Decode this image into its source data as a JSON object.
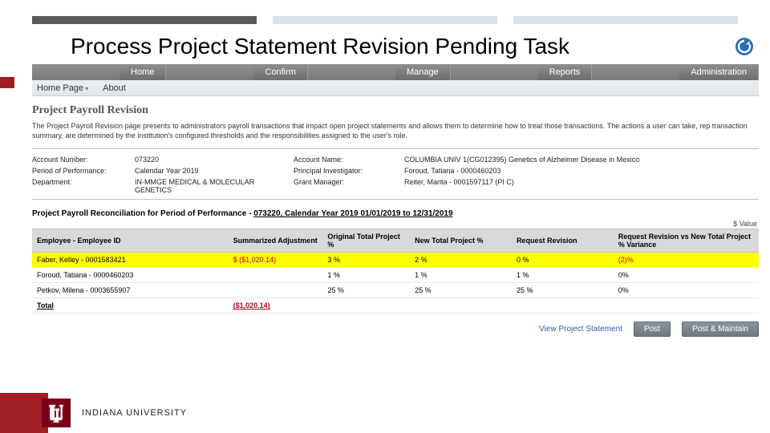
{
  "colors": {
    "crimson": "#a01f24",
    "iu_crimson": "#7a0019",
    "highlight": "#ffff00",
    "neg": "#c00020",
    "header_grey": "#d9d9d9"
  },
  "title": "Process Project Statement Revision Pending Task",
  "main_nav": [
    "Home",
    "Confirm",
    "Manage",
    "Reports",
    "Administration"
  ],
  "sub_nav": {
    "home": "Home Page",
    "about": "About"
  },
  "section_heading": "Project Payroll Revision",
  "description": "The Project Payroll Revision page presents to administrators payroll transactions that impact open project statements and allows them to determine how to treat those transactions. The actions a user can take, rep transaction summary, are determined by the institution's configured thresholds and the responsibilities assigned to the user's role.",
  "info": {
    "account_number_label": "Account Number:",
    "account_number": "073220",
    "account_name_label": "Account Name:",
    "account_name": "COLUMBIA UNIV 1(CG012395) Genetics of Alzheimer Disease in Mexico",
    "period_label": "Period of Performance:",
    "period": "Calendar Year 2019",
    "pi_label": "Principal Investigator:",
    "pi": "Foroud, Tatiana - 0000460203",
    "dept_label": "Department:",
    "dept": "IN-MMGE MEDICAL & MOLECULAR GENETICS",
    "gm_label": "Grant Manager:",
    "gm": "Reiter, Marita - 0001597117 (PI C)"
  },
  "recon_title_prefix": "Project Payroll Reconciliation for Period of Performance - ",
  "recon_title_underline": "073220, Calendar Year 2019 01/01/2019 to 12/31/2019",
  "dollar_note": "$ Value",
  "columns": {
    "emp": "Employee - Employee ID",
    "adj": "Summarized Adjustment",
    "orig": "Original Total Project %",
    "newp": "New Total Project %",
    "req": "Request Revision",
    "var": "Request Revision vs New Total Project % Variance"
  },
  "rows": [
    {
      "emp": "Faber, Kelley - 0001583421",
      "adj": "$ ($1,020.14)",
      "orig": "3 %",
      "newp": "2 %",
      "req": "0 %",
      "var": "(2)%",
      "highlight": true,
      "neg_adj": true,
      "neg_var": true
    },
    {
      "emp": "Foroud, Tatiana - 0000460203",
      "adj": "",
      "orig": "1 %",
      "newp": "1 %",
      "req": "1 %",
      "var": "0%",
      "highlight": false
    },
    {
      "emp": "Petkov, Milena - 0003655907",
      "adj": "",
      "orig": "25 %",
      "newp": "25 %",
      "req": "25 %",
      "var": "0%",
      "highlight": false
    }
  ],
  "total": {
    "label": "Total",
    "adj": "($1,020.14)"
  },
  "actions": {
    "view": "View Project Statement",
    "post": "Post",
    "post_maintain": "Post & Maintain"
  },
  "footer": "INDIANA UNIVERSITY"
}
